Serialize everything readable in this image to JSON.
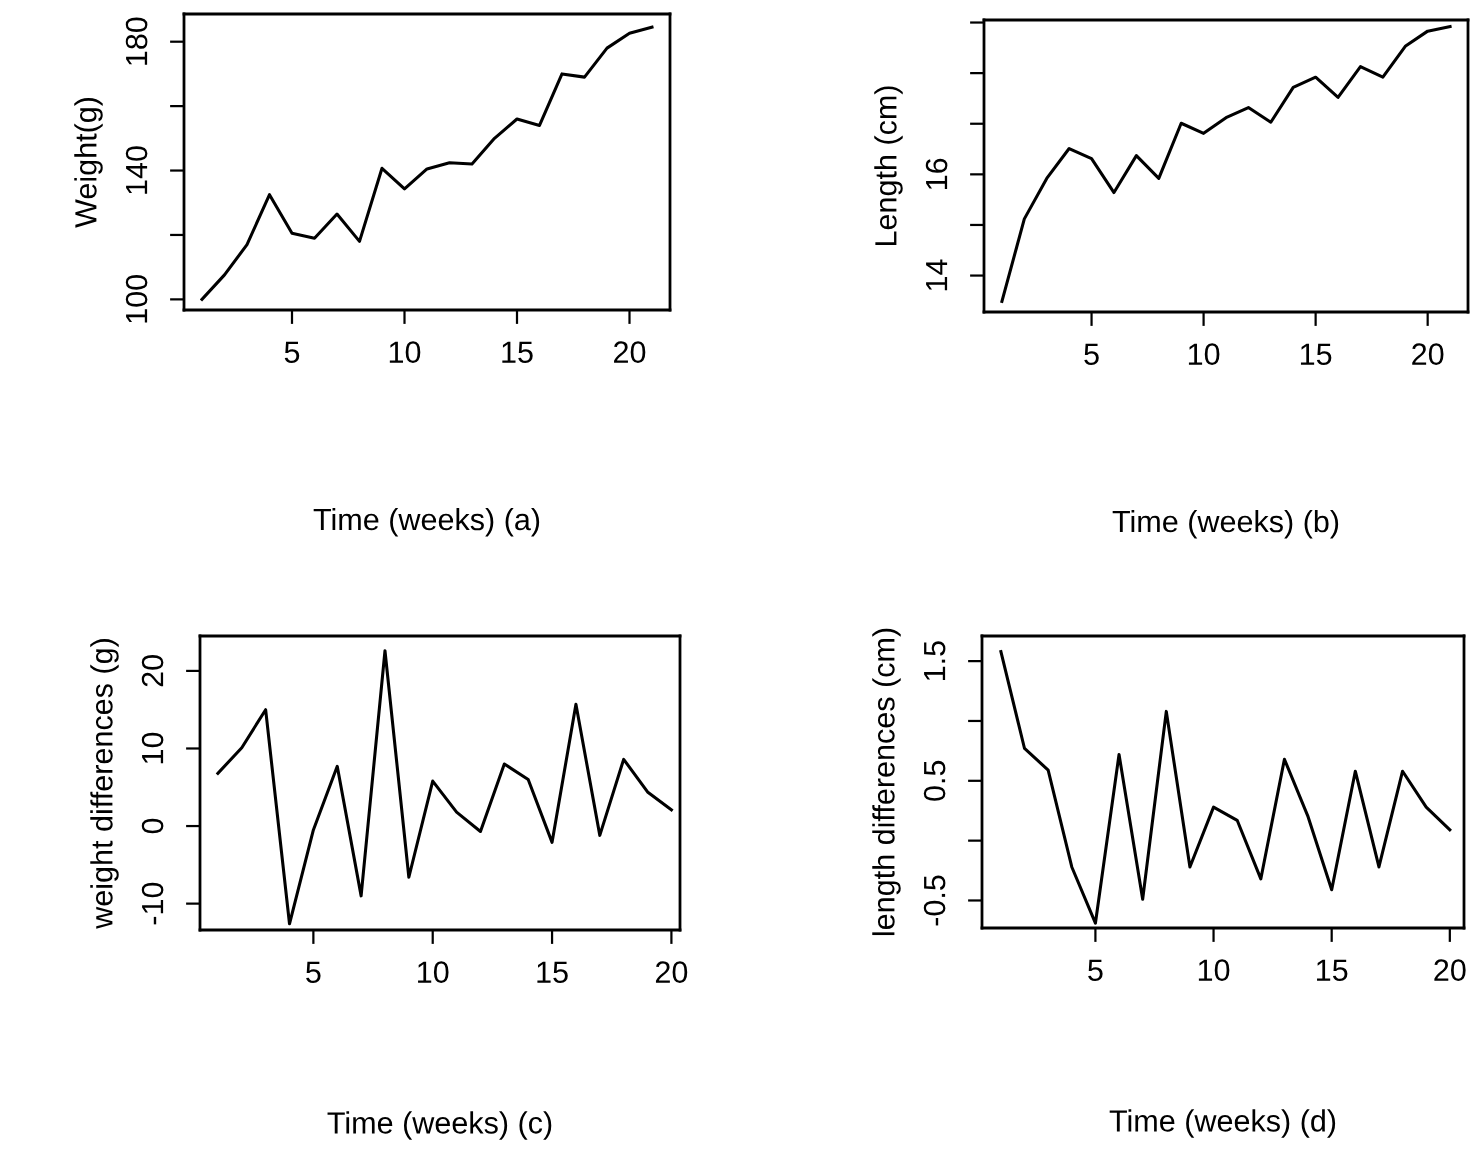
{
  "chart_data": [
    {
      "type": "line",
      "xlabel": "Time (weeks) (a)",
      "ylabel": "Weight(g)",
      "x": [
        1,
        2,
        3,
        4,
        5,
        6,
        7,
        8,
        9,
        10,
        11,
        12,
        13,
        14,
        15,
        16,
        17,
        18,
        19,
        20,
        21
      ],
      "series": [
        {
          "color": "#000000",
          "values": [
            100,
            107.6,
            117,
            132.5,
            120.5,
            119,
            126.5,
            118,
            140.7,
            134.3,
            140.5,
            142.4,
            142,
            150,
            156,
            154,
            170,
            169,
            178,
            182.6,
            184.5
          ]
        }
      ],
      "xlim": [
        0.2,
        21.8
      ],
      "ylim": [
        96.7,
        188.6
      ],
      "xticks": [
        5,
        10,
        15,
        20
      ],
      "yticks": [
        100,
        {
          "value": 120,
          "label": null
        },
        140,
        {
          "value": 160,
          "label": null
        },
        180
      ],
      "grid": false,
      "legend": false
    },
    {
      "type": "line",
      "xlabel": "Time (weeks) (b)",
      "ylabel": "Length (cm)",
      "x": [
        1,
        2,
        3,
        4,
        5,
        6,
        7,
        8,
        9,
        10,
        11,
        12,
        13,
        14,
        15,
        16,
        17,
        18,
        19,
        20,
        21
      ],
      "series": [
        {
          "color": "#000000",
          "values": [
            13.49,
            15.12,
            15.92,
            16.51,
            16.31,
            15.64,
            16.37,
            15.92,
            17.01,
            16.81,
            17.12,
            17.32,
            17.03,
            17.72,
            17.92,
            17.52,
            18.13,
            17.92,
            18.53,
            18.83,
            18.92
          ]
        }
      ],
      "xlim": [
        0.2,
        21.8
      ],
      "ylim": [
        13.28,
        19.05
      ],
      "xticks": [
        5,
        10,
        15,
        20
      ],
      "yticks": [
        14,
        {
          "value": 15,
          "label": null
        },
        16,
        {
          "value": 17,
          "label": null
        },
        {
          "value": 18,
          "label": null
        },
        {
          "value": 19,
          "label": null
        }
      ],
      "grid": false,
      "legend": false
    },
    {
      "type": "line",
      "xlabel": "Time (weeks) (c)",
      "ylabel": "weight differences (g)",
      "x": [
        1,
        2,
        3,
        4,
        5,
        6,
        7,
        8,
        9,
        10,
        11,
        12,
        13,
        14,
        15,
        16,
        17,
        18,
        19,
        20
      ],
      "series": [
        {
          "color": "#000000",
          "values": [
            6.8,
            10.1,
            15,
            -12.6,
            -0.5,
            7.7,
            -9,
            22.6,
            -6.6,
            5.8,
            1.8,
            -0.7,
            8,
            6,
            -2.1,
            15.7,
            -1.2,
            8.6,
            4.4,
            2.1
          ]
        }
      ],
      "xlim": [
        0.25,
        20.36
      ],
      "ylim": [
        -13.4,
        24.5
      ],
      "xticks": [
        5,
        10,
        15,
        20
      ],
      "yticks": [
        -10,
        0,
        10,
        20
      ],
      "grid": false,
      "legend": false
    },
    {
      "type": "line",
      "xlabel": "Time (weeks) (d)",
      "ylabel": "length differences (cm)",
      "x": [
        1,
        2,
        3,
        4,
        5,
        6,
        7,
        8,
        9,
        10,
        11,
        12,
        13,
        14,
        15,
        16,
        17,
        18,
        19,
        20
      ],
      "series": [
        {
          "color": "#000000",
          "values": [
            1.58,
            0.77,
            0.59,
            -0.22,
            -0.69,
            0.72,
            -0.49,
            1.08,
            -0.22,
            0.28,
            0.17,
            -0.32,
            0.68,
            0.2,
            -0.41,
            0.58,
            -0.22,
            0.58,
            0.28,
            0.09
          ]
        }
      ],
      "xlim": [
        0.2,
        20.6
      ],
      "ylim": [
        -0.73,
        1.71
      ],
      "xticks": [
        5,
        10,
        15,
        20
      ],
      "yticks": [
        -0.5,
        {
          "value": 0,
          "label": null
        },
        0.5,
        {
          "value": 1,
          "label": null
        },
        1.5
      ],
      "grid": false,
      "legend": false
    }
  ]
}
